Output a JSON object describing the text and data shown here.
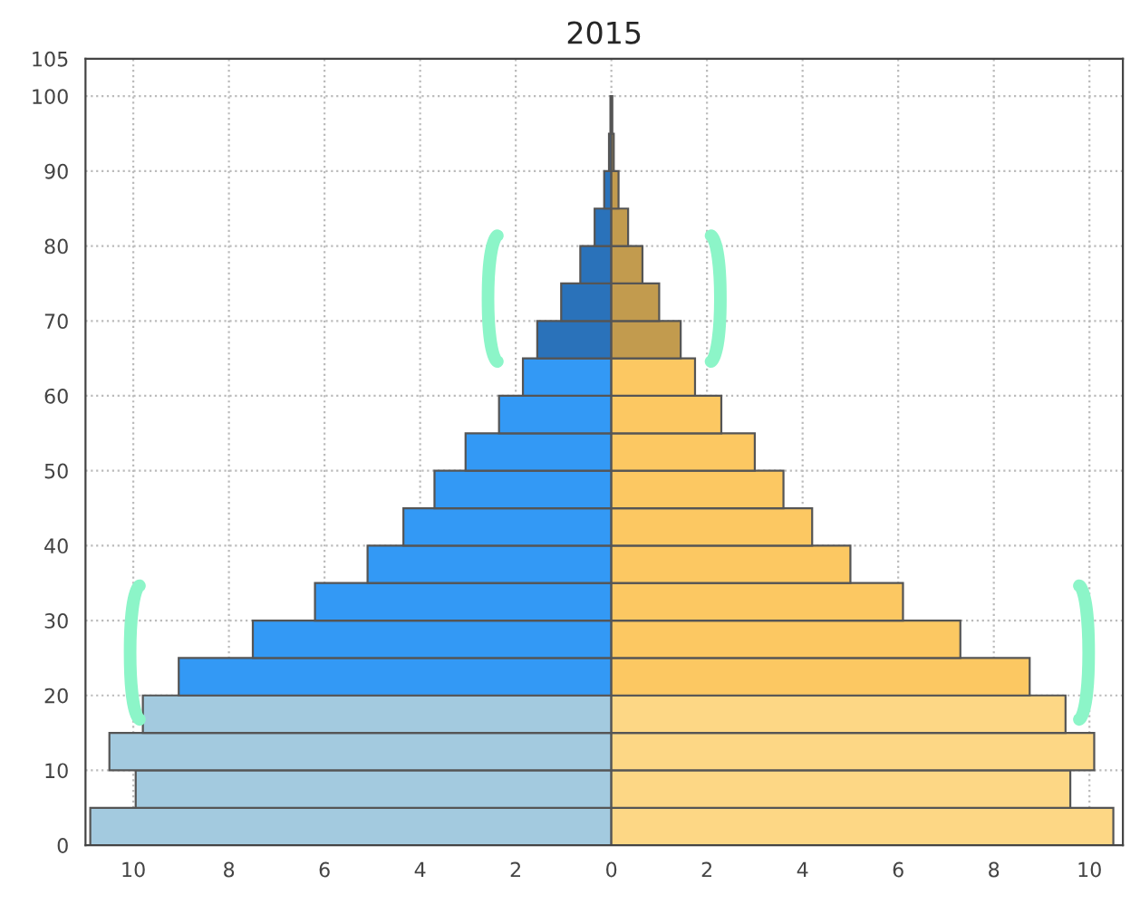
{
  "chart_data": {
    "type": "bar",
    "orientation": "horizontal",
    "stacked": true,
    "title": "2015",
    "x": [
      2.5,
      7.5,
      12.5,
      17.5,
      22.5,
      27.5,
      32.5,
      37.5,
      42.5,
      47.5,
      52.5,
      57.5,
      62.5,
      67.5,
      72.5,
      77.5,
      82.5,
      87.5,
      92.5,
      97.5
    ],
    "series": [
      {
        "color": "#a3cadf",
        "values": [
          -10.9,
          -9.95,
          -10.5,
          -9.8,
          null,
          null,
          null,
          null,
          null,
          null,
          null,
          null,
          null,
          null,
          null,
          null,
          null,
          null,
          null,
          null
        ]
      },
      {
        "color": "#fdd785",
        "values": [
          10.5,
          9.6,
          10.1,
          9.5,
          null,
          null,
          null,
          null,
          null,
          null,
          null,
          null,
          null,
          null,
          null,
          null,
          null,
          null,
          null,
          null
        ]
      },
      {
        "color": "#3399f5",
        "values": [
          null,
          null,
          null,
          null,
          -9.05,
          -7.5,
          -6.2,
          -5.1,
          -4.35,
          -3.7,
          -3.05,
          -2.35,
          -1.85,
          null,
          null,
          null,
          null,
          null,
          null,
          null
        ]
      },
      {
        "color": "#fcc862",
        "values": [
          null,
          null,
          null,
          null,
          8.75,
          7.3,
          6.1,
          5.0,
          4.2,
          3.6,
          3.0,
          2.3,
          1.75,
          null,
          null,
          null,
          null,
          null,
          null,
          null
        ]
      },
      {
        "color": "#2a72ba",
        "values": [
          null,
          null,
          null,
          null,
          null,
          null,
          null,
          null,
          null,
          null,
          null,
          null,
          null,
          -1.55,
          -1.05,
          -0.65,
          -0.35,
          -0.15,
          -0.05,
          -0.02
        ]
      },
      {
        "color": "#c29b4e",
        "values": [
          null,
          null,
          null,
          null,
          null,
          null,
          null,
          null,
          null,
          null,
          null,
          null,
          null,
          1.45,
          1.0,
          0.65,
          0.35,
          0.15,
          0.05,
          0.02
        ]
      }
    ],
    "xlim": [
      -11,
      10.7
    ],
    "xticks": [
      {
        "value": -10,
        "label": "10"
      },
      {
        "value": -8,
        "label": "8"
      },
      {
        "value": -6,
        "label": "6"
      },
      {
        "value": -4,
        "label": "4"
      },
      {
        "value": -2,
        "label": "2"
      },
      0,
      2,
      4,
      6,
      8,
      10
    ],
    "ylim": [
      0,
      105
    ],
    "yticks": [
      0,
      10,
      20,
      30,
      40,
      50,
      60,
      70,
      80,
      90,
      100,
      105
    ],
    "grid": true
  }
}
